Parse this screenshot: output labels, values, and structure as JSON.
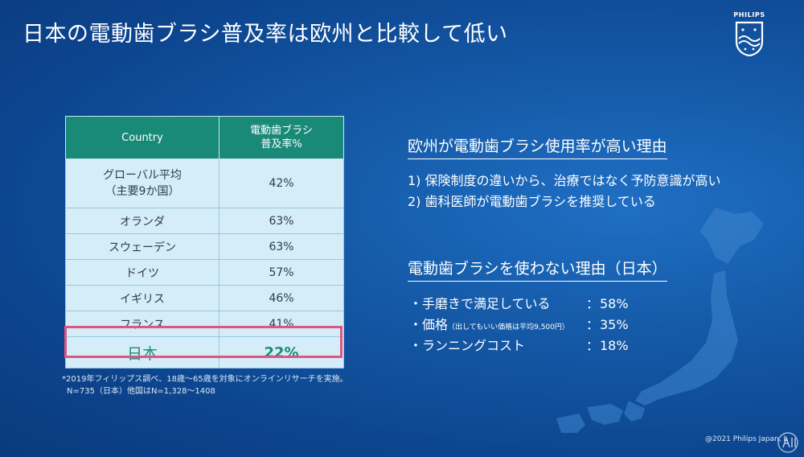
{
  "slide": {
    "title": "日本の電動歯ブラシ普及率は欧州と比較して低い"
  },
  "brand": {
    "logo_text": "PHILIPS",
    "colors": {
      "header": "#1a8a78",
      "table_bg": "#d4edf9",
      "highlight": "#e0557f",
      "background": "#155aa8"
    }
  },
  "table": {
    "headers": [
      "Country",
      "電動歯ブラシ",
      "普及率%"
    ],
    "rows": [
      {
        "country_line1": "グローバル平均",
        "country_line2": "（主要9か国）",
        "value": "42%"
      },
      {
        "country": "オランダ",
        "value": "63%"
      },
      {
        "country": "スウェーデン",
        "value": "63%"
      },
      {
        "country": "ドイツ",
        "value": "57%"
      },
      {
        "country": "イギリス",
        "value": "46%"
      },
      {
        "country": "フランス",
        "value": "41%"
      },
      {
        "country": "日本",
        "value": "22%"
      }
    ]
  },
  "footnote": {
    "line1": "*2019年フィリップス調べ、18歳～65歳を対象にオンラインリサーチを実施。",
    "line2": "N=735（日本）他国はN=1,328～1408"
  },
  "section1": {
    "title": "欧州が電動歯ブラシ使用率が高い理由",
    "items": [
      "1) 保険制度の違いから、治療ではなく予防意識が高い",
      "2) 歯科医師が電動歯ブラシを推奨している"
    ]
  },
  "section2": {
    "title": "電動歯ブラシを使わない理由（日本）",
    "items": [
      {
        "label": "・手磨きで満足している",
        "note": "",
        "value": "58%"
      },
      {
        "label": "・価格",
        "note": "（出してもいい価格は平均9,500円）",
        "value": "35%"
      },
      {
        "label": "・ランニングコスト",
        "note": "",
        "value": "18%"
      }
    ],
    "colon": "："
  },
  "copyright": "@2021 Philips Japan, L"
}
